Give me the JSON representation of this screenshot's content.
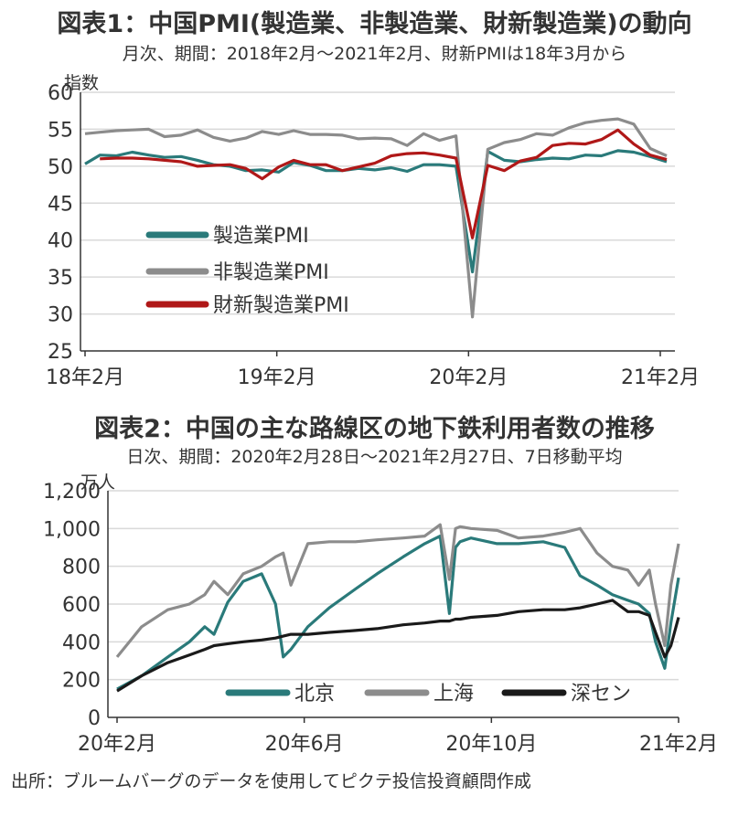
{
  "chart1": {
    "title": "図表1：中国PMI(製造業、非製造業、財新製造業)の動向",
    "subtitle": "月次、期間：2018年2月～2021年2月、財新PMIは18年3月から",
    "unit": "指数"
  },
  "chart2": {
    "title": "図表2：中国の主な路線区の地下鉄利用者数の推移",
    "subtitle": "日次、期間：2020年2月28日～2021年2月27日、7日移動平均",
    "unit": "万人"
  },
  "source": "出所：ブルームバーグのデータを使用してピクテ投信投資顧問作成",
  "chart_data": [
    {
      "type": "line",
      "ylabel": "指数",
      "ylim": [
        25,
        60
      ],
      "yticks": [
        "60",
        "55",
        "50",
        "45",
        "40",
        "35",
        "30",
        "25"
      ],
      "xticks": [
        "18年2月",
        "19年2月",
        "20年2月",
        "21年2月"
      ],
      "x": [
        "2018-02",
        "2018-03",
        "2018-04",
        "2018-05",
        "2018-06",
        "2018-07",
        "2018-08",
        "2018-09",
        "2018-10",
        "2018-11",
        "2018-12",
        "2019-01",
        "2019-02",
        "2019-03",
        "2019-04",
        "2019-05",
        "2019-06",
        "2019-07",
        "2019-08",
        "2019-09",
        "2019-10",
        "2019-11",
        "2019-12",
        "2020-01",
        "2020-02",
        "2020-03",
        "2020-04",
        "2020-05",
        "2020-06",
        "2020-07",
        "2020-08",
        "2020-09",
        "2020-10",
        "2020-11",
        "2020-12",
        "2021-01",
        "2021-02"
      ],
      "legend_position": "center-left",
      "series": [
        {
          "name": "製造業PMI",
          "color": "#2a7a7a",
          "values": [
            50.3,
            51.5,
            51.4,
            51.9,
            51.5,
            51.2,
            51.3,
            50.8,
            50.2,
            50.0,
            49.4,
            49.5,
            49.2,
            50.5,
            50.1,
            49.4,
            49.4,
            49.7,
            49.5,
            49.8,
            49.3,
            50.2,
            50.2,
            50.0,
            35.7,
            52.0,
            50.8,
            50.6,
            50.9,
            51.1,
            51.0,
            51.5,
            51.4,
            52.1,
            51.9,
            51.3,
            50.6
          ]
        },
        {
          "name": "非製造業PMI",
          "color": "#8c8c8c",
          "values": [
            54.4,
            54.6,
            54.8,
            54.9,
            55.0,
            54.0,
            54.2,
            54.9,
            53.9,
            53.4,
            53.8,
            54.7,
            54.3,
            54.8,
            54.3,
            54.3,
            54.2,
            53.7,
            53.8,
            53.7,
            52.8,
            54.4,
            53.5,
            54.1,
            29.6,
            52.3,
            53.2,
            53.6,
            54.4,
            54.2,
            55.2,
            55.9,
            56.2,
            56.4,
            55.7,
            52.4,
            51.4
          ]
        },
        {
          "name": "財新製造業PMI",
          "color": "#b01818",
          "values": [
            null,
            51.0,
            51.1,
            51.1,
            51.0,
            50.8,
            50.6,
            50.0,
            50.1,
            50.2,
            49.7,
            48.3,
            49.9,
            50.8,
            50.2,
            50.2,
            49.4,
            49.9,
            50.4,
            51.4,
            51.7,
            51.8,
            51.5,
            51.1,
            40.3,
            50.1,
            49.4,
            50.7,
            51.2,
            52.8,
            53.1,
            53.0,
            53.6,
            54.9,
            53.0,
            51.5,
            50.9
          ]
        }
      ]
    },
    {
      "type": "line",
      "ylabel": "万人",
      "ylim": [
        0,
        1200
      ],
      "yticks": [
        "1,200",
        "1,000",
        "800",
        "600",
        "400",
        "200",
        "0"
      ],
      "xticks": [
        "20年2月",
        "20年6月",
        "20年10月",
        "21年2月"
      ],
      "x": [
        "2020-02-28",
        "2020-03-15",
        "2020-04-01",
        "2020-04-15",
        "2020-04-25",
        "2020-05-01",
        "2020-05-10",
        "2020-05-20",
        "2020-06-01",
        "2020-06-10",
        "2020-06-15",
        "2020-06-20",
        "2020-07-01",
        "2020-07-15",
        "2020-08-01",
        "2020-08-15",
        "2020-09-01",
        "2020-09-15",
        "2020-09-25",
        "2020-10-01",
        "2020-10-05",
        "2020-10-08",
        "2020-10-15",
        "2020-11-01",
        "2020-11-15",
        "2020-12-01",
        "2020-12-15",
        "2020-12-25",
        "2021-01-05",
        "2021-01-15",
        "2021-01-25",
        "2021-02-01",
        "2021-02-08",
        "2021-02-12",
        "2021-02-18",
        "2021-02-22",
        "2021-02-27"
      ],
      "legend_position": "bottom",
      "series": [
        {
          "name": "北京",
          "color": "#2a7a7a",
          "values": [
            150,
            220,
            320,
            400,
            480,
            440,
            610,
            720,
            760,
            600,
            320,
            360,
            480,
            580,
            680,
            760,
            850,
            920,
            960,
            550,
            900,
            930,
            950,
            920,
            920,
            930,
            900,
            750,
            700,
            650,
            620,
            600,
            550,
            400,
            260,
            500,
            740
          ]
        },
        {
          "name": "上海",
          "color": "#8c8c8c",
          "values": [
            320,
            480,
            570,
            600,
            650,
            720,
            650,
            760,
            800,
            850,
            870,
            700,
            920,
            930,
            930,
            940,
            950,
            960,
            1020,
            730,
            1000,
            1010,
            1000,
            990,
            950,
            960,
            980,
            1000,
            870,
            800,
            780,
            700,
            780,
            600,
            380,
            700,
            920
          ]
        },
        {
          "name": "深セン",
          "color": "#1a1a1a",
          "values": [
            140,
            220,
            290,
            330,
            360,
            380,
            390,
            400,
            410,
            420,
            430,
            440,
            440,
            450,
            460,
            470,
            490,
            500,
            510,
            510,
            520,
            520,
            530,
            540,
            560,
            570,
            570,
            580,
            600,
            620,
            560,
            560,
            540,
            450,
            320,
            380,
            530
          ]
        }
      ]
    }
  ]
}
